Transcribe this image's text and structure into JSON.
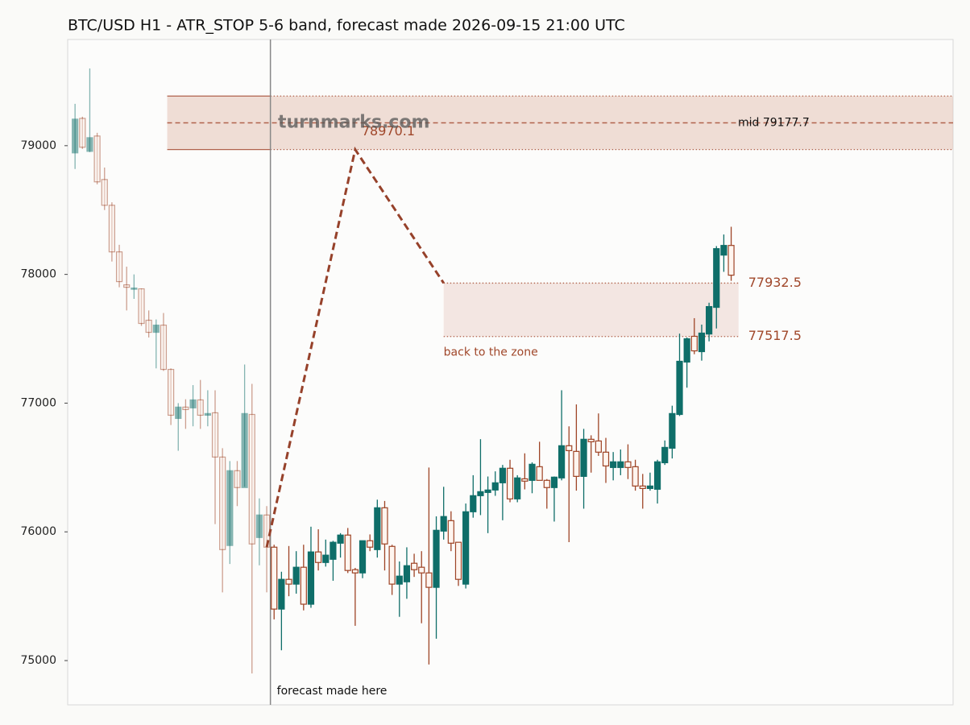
{
  "chart_data": {
    "type": "candlestick",
    "title": "BTC/USD H1 - ATR_STOP 5-6 band, forecast made 2026-09-15 21:00 UTC",
    "watermark": "turnmarks.com",
    "xlim": [
      -1,
      119.1
    ],
    "ylim": [
      74656,
      79825
    ],
    "yticks": [
      75000,
      76000,
      77000,
      78000,
      79000
    ],
    "up_color": "#0f6e69",
    "down_color": "#9e4426",
    "forecast_index": 26.5,
    "forecast_label": "forecast made here",
    "open": [
      78944,
      79212,
      78956,
      79075,
      78737,
      78537,
      78175,
      77919,
      77890,
      77888,
      77644,
      77550,
      77606,
      77262,
      76881,
      76969,
      76963,
      77025,
      76906,
      76925,
      76581,
      75894,
      76475,
      76344,
      76912,
      75956,
      76131,
      75881,
      75400,
      75631,
      75594,
      75725,
      75438,
      75844,
      75762,
      75787,
      75912,
      75975,
      75706,
      75681,
      75931,
      75862,
      76187,
      75887,
      75594,
      75612,
      75756,
      75725,
      75681,
      75569,
      76006,
      76087,
      75919,
      75594,
      76156,
      76281,
      76306,
      76325,
      76381,
      76494,
      76256,
      76412,
      76400,
      76506,
      76400,
      76344,
      76419,
      76669,
      76625,
      76431,
      76719,
      76706,
      76619,
      76500,
      76500,
      76544,
      76506,
      76356,
      76337,
      76331,
      76537,
      76650,
      76912,
      77319,
      77519,
      77400,
      77537,
      77744,
      78150,
      78225
    ],
    "high": [
      79325,
      79225,
      79600,
      79100,
      78830,
      78560,
      78230,
      78060,
      78000,
      77890,
      77720,
      77650,
      77700,
      77270,
      77000,
      77030,
      77140,
      77180,
      77100,
      77100,
      76650,
      76550,
      76550,
      77300,
      77150,
      76260,
      76200,
      75900,
      75690,
      75890,
      75850,
      75900,
      76040,
      76020,
      75940,
      75930,
      75990,
      76030,
      75720,
      75930,
      75980,
      76250,
      76240,
      75900,
      75770,
      75880,
      75830,
      75850,
      76500,
      76120,
      76350,
      76160,
      75920,
      76220,
      76440,
      76720,
      76430,
      76470,
      76520,
      76560,
      76440,
      76610,
      76540,
      76700,
      76410,
      76430,
      77100,
      76820,
      76990,
      76800,
      76750,
      76920,
      76730,
      76620,
      76640,
      76680,
      76560,
      76450,
      76460,
      76560,
      76710,
      76980,
      77540,
      77510,
      77660,
      77610,
      77780,
      78220,
      78310,
      78370
    ],
    "low": [
      78819,
      78975,
      78950,
      78700,
      78500,
      78100,
      77900,
      77720,
      77810,
      77600,
      77510,
      77270,
      77250,
      76830,
      76630,
      76800,
      76820,
      76800,
      76820,
      76060,
      75530,
      75750,
      76200,
      76350,
      74900,
      75740,
      75530,
      75320,
      75080,
      75500,
      75520,
      75390,
      75410,
      75700,
      75730,
      75620,
      75800,
      75680,
      75270,
      75640,
      75850,
      75800,
      75700,
      75510,
      75340,
      75480,
      75650,
      75290,
      74970,
      75170,
      75940,
      75850,
      75580,
      75560,
      76110,
      76130,
      75990,
      76280,
      76090,
      76230,
      76230,
      76330,
      76300,
      76400,
      76180,
      76080,
      76400,
      75920,
      76320,
      76180,
      76460,
      76590,
      76380,
      76400,
      76440,
      76410,
      76320,
      76180,
      76320,
      76220,
      76520,
      76570,
      76900,
      77120,
      77380,
      77330,
      77480,
      77580,
      78020,
      77950
    ],
    "close": [
      79206,
      78988,
      79062,
      78719,
      78537,
      78175,
      77944,
      77900,
      77894,
      77619,
      77550,
      77606,
      77262,
      76906,
      76969,
      76950,
      77025,
      76906,
      76919,
      76581,
      75862,
      76475,
      76344,
      76919,
      75906,
      76131,
      75881,
      75400,
      75631,
      75594,
      75725,
      75438,
      75844,
      75762,
      75819,
      75919,
      75975,
      75700,
      75681,
      75931,
      75881,
      76187,
      75906,
      75594,
      75656,
      75737,
      75706,
      75681,
      75569,
      76012,
      76119,
      75912,
      75631,
      76156,
      76281,
      76312,
      76325,
      76381,
      76494,
      76256,
      76419,
      76394,
      76525,
      76400,
      76344,
      76425,
      76669,
      76631,
      76431,
      76719,
      76700,
      76619,
      76512,
      76544,
      76544,
      76500,
      76356,
      76337,
      76356,
      76544,
      76656,
      76919,
      77325,
      77500,
      77406,
      77544,
      77750,
      78200,
      78225,
      77994
    ],
    "band": {
      "low": 78970.1,
      "high": 79385.3,
      "mid": 79177.7,
      "mid_label": "mid 79177.7",
      "start_x": 12.5
    },
    "forecast_path": {
      "x": [
        26,
        38,
        50
      ],
      "y": [
        75881,
        78970.1,
        77932.5
      ]
    },
    "zone": {
      "x": [
        50,
        90
      ],
      "top": 77932.5,
      "bottom": 77517.5,
      "label": "back to the zone"
    }
  }
}
